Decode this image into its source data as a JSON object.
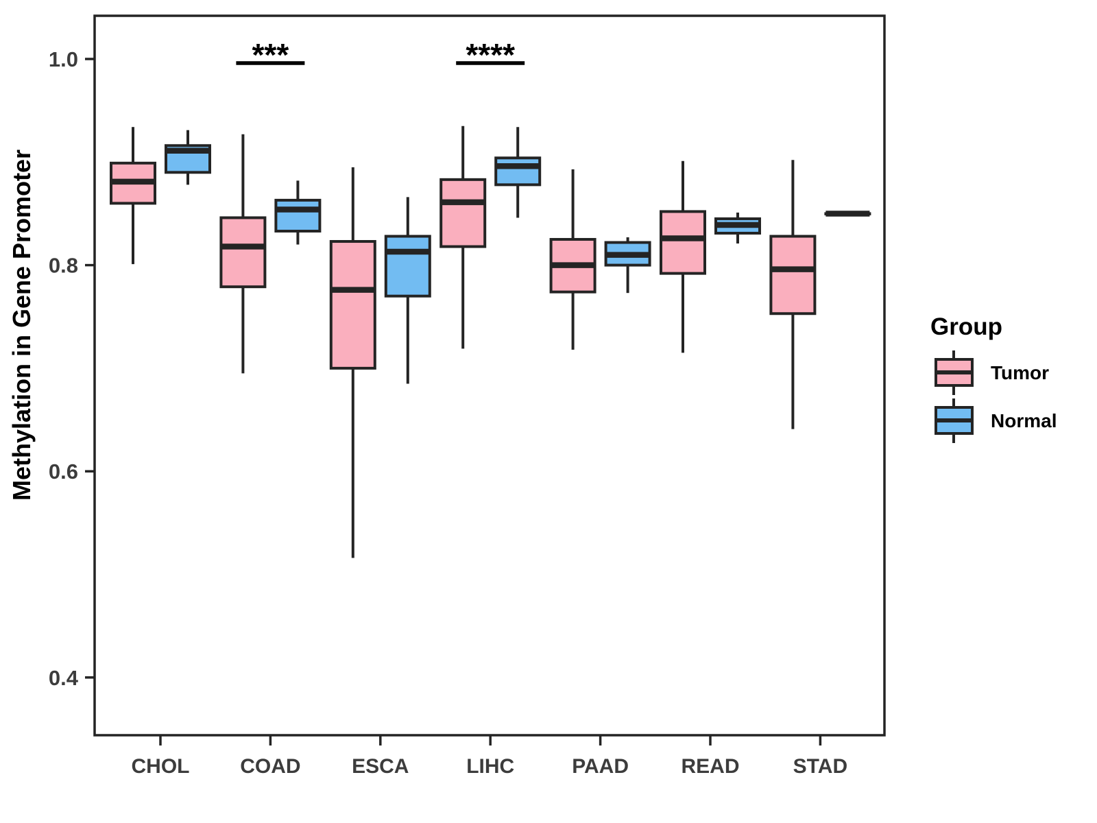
{
  "figure": {
    "background": "#FFFFFF",
    "y_axis": {
      "label": "Methylation in Gene Promoter",
      "ticks": [
        {
          "value": 1.0,
          "label": "1.0"
        },
        {
          "value": 0.8,
          "label": "0.8"
        },
        {
          "value": 0.6,
          "label": "0.6"
        },
        {
          "value": 0.4,
          "label": "0.4"
        }
      ]
    },
    "x_axis": {
      "categories": [
        "CHOL",
        "COAD",
        "ESCA",
        "LIHC",
        "PAAD",
        "READ",
        "STAD"
      ]
    }
  },
  "legend": {
    "title": "Group",
    "items": [
      {
        "label": "Tumor",
        "fill": "#FAAFBE"
      },
      {
        "label": "Normal",
        "fill": "#72BCF2"
      }
    ]
  },
  "colors": {
    "tumor_fill": "#FAAFBE",
    "normal_fill": "#72BCF2",
    "box_stroke": "#242424",
    "tick_text": "#3C3C3C",
    "annotation": "#000000"
  },
  "chart_data": {
    "type": "boxplot",
    "title": "",
    "xlabel": "",
    "ylabel": "Methylation in Gene Promoter",
    "categories": [
      "CHOL",
      "COAD",
      "ESCA",
      "LIHC",
      "PAAD",
      "READ",
      "STAD"
    ],
    "groups": [
      "Tumor",
      "Normal"
    ],
    "ylim": [
      0.33,
      1.04
    ],
    "yticks": [
      0.4,
      0.6,
      0.8,
      1.0
    ],
    "grid": false,
    "legend_position": "right",
    "series": [
      {
        "name": "Tumor",
        "color": "#FAAFBE",
        "boxes": [
          {
            "category": "CHOL",
            "min": 0.801,
            "q1": 0.86,
            "median": 0.881,
            "q3": 0.899,
            "max": 0.934
          },
          {
            "category": "COAD",
            "min": 0.695,
            "q1": 0.779,
            "median": 0.818,
            "q3": 0.846,
            "max": 0.927
          },
          {
            "category": "ESCA",
            "min": 0.516,
            "q1": 0.7,
            "median": 0.776,
            "q3": 0.823,
            "max": 0.895
          },
          {
            "category": "LIHC",
            "min": 0.719,
            "q1": 0.818,
            "median": 0.861,
            "q3": 0.883,
            "max": 0.935
          },
          {
            "category": "PAAD",
            "min": 0.718,
            "q1": 0.774,
            "median": 0.8,
            "q3": 0.825,
            "max": 0.893
          },
          {
            "category": "READ",
            "min": 0.715,
            "q1": 0.792,
            "median": 0.826,
            "q3": 0.852,
            "max": 0.901
          },
          {
            "category": "STAD",
            "min": 0.641,
            "q1": 0.753,
            "median": 0.796,
            "q3": 0.828,
            "max": 0.902
          }
        ]
      },
      {
        "name": "Normal",
        "color": "#72BCF2",
        "boxes": [
          {
            "category": "CHOL",
            "min": 0.878,
            "q1": 0.89,
            "median": 0.911,
            "q3": 0.916,
            "max": 0.931
          },
          {
            "category": "COAD",
            "min": 0.82,
            "q1": 0.833,
            "median": 0.854,
            "q3": 0.863,
            "max": 0.882
          },
          {
            "category": "ESCA",
            "min": 0.685,
            "q1": 0.77,
            "median": 0.813,
            "q3": 0.828,
            "max": 0.866
          },
          {
            "category": "LIHC",
            "min": 0.846,
            "q1": 0.878,
            "median": 0.896,
            "q3": 0.904,
            "max": 0.934
          },
          {
            "category": "PAAD",
            "min": 0.773,
            "q1": 0.8,
            "median": 0.81,
            "q3": 0.822,
            "max": 0.827
          },
          {
            "category": "READ",
            "min": 0.821,
            "q1": 0.831,
            "median": 0.839,
            "q3": 0.845,
            "max": 0.851
          },
          {
            "category": "STAD",
            "min": 0.85,
            "q1": 0.85,
            "median": 0.85,
            "q3": 0.85,
            "max": 0.85
          }
        ]
      }
    ],
    "annotations": [
      {
        "category": "COAD",
        "label": "***"
      },
      {
        "category": "LIHC",
        "label": "****"
      }
    ]
  }
}
